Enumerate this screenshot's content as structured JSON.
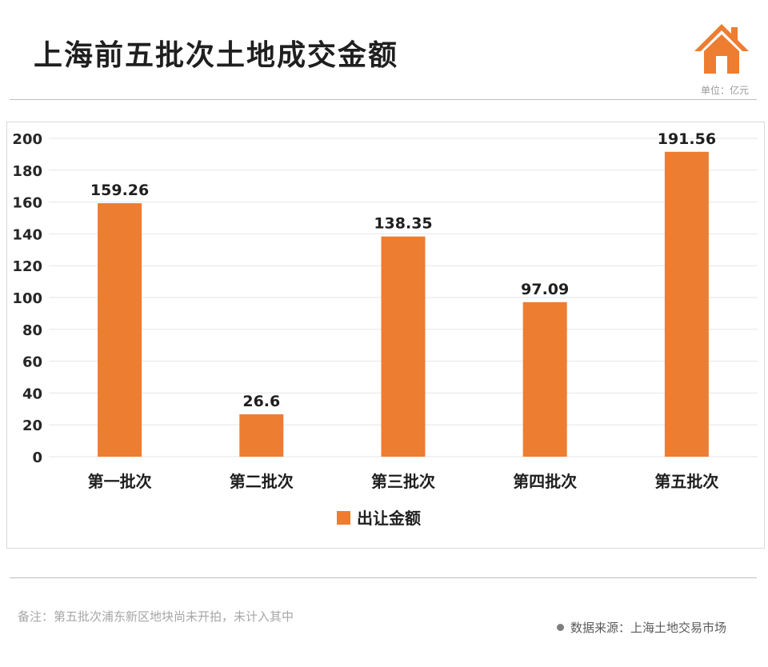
{
  "header": {
    "title": "上海前五批次土地成交金额",
    "unit": "单位：亿元",
    "logo_icon": "house-icon"
  },
  "chart_data": {
    "type": "bar",
    "categories": [
      "第一批次",
      "第二批次",
      "第三批次",
      "第四批次",
      "第五批次"
    ],
    "series": [
      {
        "name": "出让金额",
        "values": [
          159.26,
          26.6,
          138.35,
          97.09,
          191.56
        ]
      }
    ],
    "data_labels": [
      "159.26",
      "26.6",
      "138.35",
      "97.09",
      "191.56"
    ],
    "ylim": [
      0,
      200
    ],
    "yticks": [
      0,
      20,
      40,
      60,
      80,
      100,
      120,
      140,
      160,
      180,
      200
    ],
    "grid": true,
    "legend_position": "bottom",
    "bar_color": "#ED7D31",
    "grid_color": "#E6E6E6"
  },
  "footer": {
    "note": "备注：第五批次浦东新区地块尚未开拍，未计入其中",
    "source": "数据来源：上海土地交易市场"
  }
}
